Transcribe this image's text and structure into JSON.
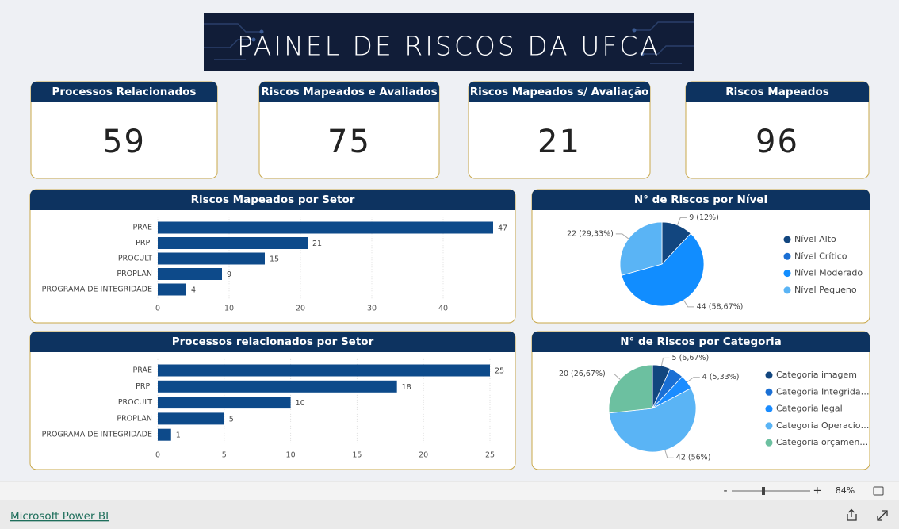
{
  "title": "PAINEL DE RISCOS DA UFCA",
  "cards": [
    {
      "title": "Processos Relacionados",
      "value": 59
    },
    {
      "title": "Riscos Mapeados e Avaliados",
      "value": 75
    },
    {
      "title": "Riscos Mapeados s/ Avaliação",
      "value": 21
    },
    {
      "title": "Riscos Mapeados",
      "value": 96
    }
  ],
  "chart_data": [
    {
      "type": "bar",
      "orientation": "horizontal",
      "title": "Riscos Mapeados por Setor",
      "categories": [
        "PRAE",
        "PRPI",
        "PROCULT",
        "PROPLAN",
        "PROGRAMA DE INTEGRIDADE"
      ],
      "values": [
        47,
        21,
        15,
        9,
        4
      ],
      "color": "#0d4a8a",
      "xlim": [
        0,
        47
      ],
      "xticks": [
        0,
        10,
        20,
        30,
        40
      ],
      "grid": true
    },
    {
      "type": "pie",
      "title": "N° de Riscos por Nível",
      "categories": [
        "Nível Alto",
        "Nível Crítico",
        "Nível Moderado",
        "Nível Pequeno"
      ],
      "values": [
        9,
        0,
        44,
        22
      ],
      "value_labels": [
        "9 (12%)",
        null,
        "44 (58,67%)",
        "22 (29,33%)"
      ],
      "colors": [
        "#12467f",
        "#1a6fd4",
        "#118dff",
        "#5ab4f5"
      ],
      "legend": "right"
    },
    {
      "type": "bar",
      "orientation": "horizontal",
      "title": "Processos relacionados por Setor",
      "categories": [
        "PRAE",
        "PRPI",
        "PROCULT",
        "PROPLAN",
        "PROGRAMA DE INTEGRIDADE"
      ],
      "values": [
        25,
        18,
        10,
        5,
        1
      ],
      "color": "#0d4a8a",
      "xlim": [
        0,
        25
      ],
      "xticks": [
        0,
        5,
        10,
        15,
        20,
        25
      ],
      "grid": true
    },
    {
      "type": "pie",
      "title": "N° de Riscos por Categoria",
      "categories": [
        "Categoria imagem",
        "Categoria Integrida…",
        "Categoria legal",
        "Categoria Operacio…",
        "Categoria orçamen…"
      ],
      "values": [
        5,
        4,
        4,
        42,
        20
      ],
      "value_labels": [
        "5 (6,67%)",
        null,
        "4 (5,33%)",
        "42 (56%)",
        "20 (26,67%)"
      ],
      "colors": [
        "#12467f",
        "#1a6fd4",
        "#1a8cff",
        "#5ab4f5",
        "#6cc0a0"
      ],
      "legend": "right"
    }
  ],
  "status_bar": {
    "zoom_out": "-",
    "zoom_in": "+",
    "zoom": "84%"
  },
  "footer": {
    "link": "Microsoft Power BI"
  }
}
